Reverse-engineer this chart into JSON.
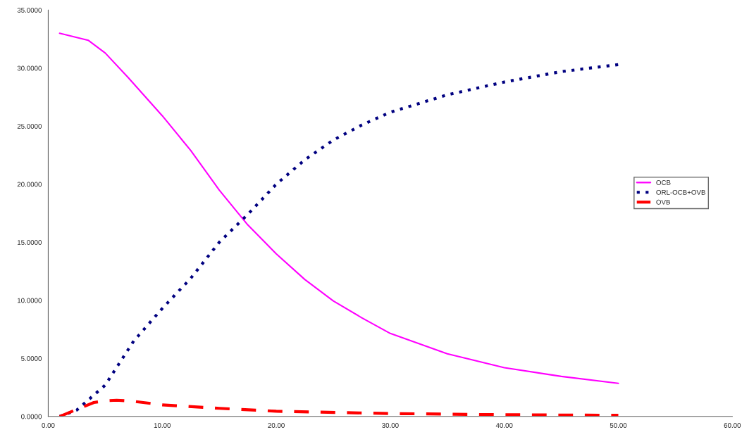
{
  "chart_data": {
    "type": "line",
    "series": [
      {
        "name": "OCB",
        "color": "#ff00ff",
        "line_style": "solid",
        "x": [
          1,
          3.5,
          5,
          7,
          10,
          12.5,
          15,
          17.5,
          20,
          22.5,
          25,
          27.5,
          30,
          35,
          40,
          45,
          50
        ],
        "values": [
          33.0,
          32.4,
          31.3,
          29.2,
          25.9,
          22.9,
          19.5,
          16.5,
          14.0,
          11.8,
          9.95,
          8.5,
          7.15,
          5.4,
          4.2,
          3.45,
          2.85
        ]
      },
      {
        "name": "ORL-OCB+OVB",
        "color": "#000080",
        "line_style": "dotted",
        "x": [
          1,
          2.5,
          5,
          7.5,
          10,
          12.5,
          15,
          17.5,
          20,
          22.5,
          25,
          27.5,
          30,
          35,
          40,
          45,
          50
        ],
        "values": [
          0,
          0.55,
          2.7,
          6.5,
          9.3,
          11.9,
          15.0,
          17.4,
          20.0,
          22.1,
          23.8,
          25.1,
          26.2,
          27.7,
          28.8,
          29.7,
          30.3
        ]
      },
      {
        "name": "OVB",
        "color": "#ff0000",
        "line_style": "dashed",
        "x": [
          1,
          2.5,
          4,
          5,
          6,
          7.5,
          10,
          15,
          20,
          30,
          40,
          50
        ],
        "values": [
          0,
          0.6,
          1.2,
          1.35,
          1.4,
          1.3,
          1.0,
          0.7,
          0.45,
          0.25,
          0.15,
          0.1
        ]
      }
    ],
    "xlim": [
      0,
      60
    ],
    "xticks": [
      {
        "value": 0,
        "label": "0.00"
      },
      {
        "value": 10,
        "label": "10.00"
      },
      {
        "value": 20,
        "label": "20.00"
      },
      {
        "value": 30,
        "label": "30.00"
      },
      {
        "value": 40,
        "label": "40.00"
      },
      {
        "value": 50,
        "label": "50.00"
      },
      {
        "value": 60,
        "label": "60.00"
      }
    ],
    "ylim": [
      0,
      35
    ],
    "yticks": [
      {
        "value": 0,
        "label": "0.0000"
      },
      {
        "value": 5,
        "label": "5.0000"
      },
      {
        "value": 10,
        "label": "10.0000"
      },
      {
        "value": 15,
        "label": "15.0000"
      },
      {
        "value": 20,
        "label": "20.0000"
      },
      {
        "value": 25,
        "label": "25.0000"
      },
      {
        "value": 30,
        "label": "30.0000"
      },
      {
        "value": 35,
        "label": "35.0000"
      }
    ],
    "grid": false,
    "legend": "right"
  }
}
